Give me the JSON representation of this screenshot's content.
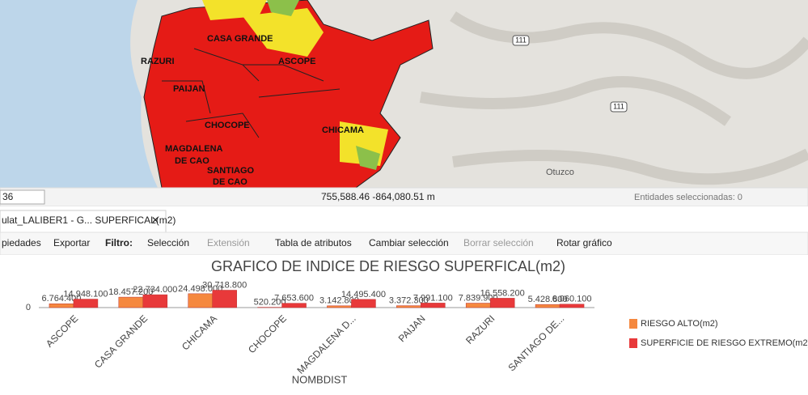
{
  "map": {
    "labels": [
      "CASA GRANDE",
      "RAZURI",
      "ASCOPE",
      "PAIJAN",
      "CHOCOPE",
      "CHICAMA",
      "MAGDALENA",
      "DE CAO",
      "SANTIAGO",
      "DE CAO"
    ],
    "road_shields": [
      "111",
      "111"
    ],
    "place": "Otuzco"
  },
  "status_bar": {
    "scale": "36",
    "coordinates": "755,588.46 -864,080.51 m",
    "selected": "Entidades seleccionadas: 0"
  },
  "tab": {
    "title": "ulat_LALIBER1 - G... SUPERFICAL(m2)"
  },
  "toolbar": {
    "properties": "piedades",
    "export": "Exportar",
    "filter": "Filtro:",
    "selection": "Selección",
    "extent": "Extensión",
    "attribute_table": "Tabla de atributos",
    "switch_selection": "Cambiar selección",
    "clear_selection": "Borrar selección",
    "rotate_chart": "Rotar gráfico"
  },
  "chart_data": {
    "type": "bar",
    "title": "GRAFICO DE INDICE DE RIESGO SUPERFICAL(m2)",
    "x_label": "NOMBDIST",
    "categories": [
      "ASCOPE",
      "CASA GRANDE",
      "CHICAMA",
      "CHOCOPE",
      "MAGDALENA D...",
      "PAIJAN",
      "RAZURI",
      "SANTIAGO DE..."
    ],
    "series": [
      {
        "name": "RIESGO ALTO(m2)",
        "color": "#f5883f",
        "values": [
          6764400,
          18457200,
          24498000,
          520200,
          3142800,
          3372300,
          7839900,
          5428800
        ],
        "value_labels": [
          "6.764.400",
          "18.457.200",
          "24.498.000",
          "520.200",
          "3.142.800",
          "3.372.300",
          "7.839.900",
          "5.428.800"
        ]
      },
      {
        "name": "SUPERFICIE DE RIESGO EXTREMO(m2)",
        "color": "#e8393a",
        "values": [
          14948100,
          22734000,
          30718800,
          7653600,
          14495400,
          7991100,
          16558200,
          6060100
        ],
        "value_labels": [
          "14.948.100",
          "22.734.000",
          "30.718.800",
          "7.653.600",
          "14.495.400",
          "7.991.100",
          "16.558.200",
          "6.060.100"
        ]
      }
    ],
    "ylim": [
      0,
      40000000
    ],
    "yticks": [
      0
    ],
    "legend": "right"
  }
}
